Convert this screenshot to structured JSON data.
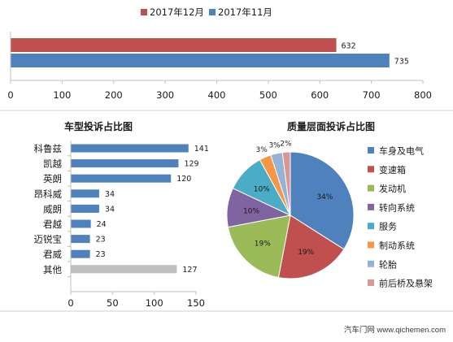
{
  "colors": {
    "dec": "#c0504d",
    "nov": "#4f81bd",
    "bar": "#4f81bd",
    "other_bar": "#bfbfbf",
    "axis": "#bfbfbf",
    "text": "#1a1a1a",
    "pie": [
      "#4f81bd",
      "#c0504d",
      "#9bbb59",
      "#8064a2",
      "#4bacc6",
      "#f79646",
      "#95b3d7",
      "#d99694"
    ]
  },
  "watermark": "汽车门网 www.qichemen.com",
  "chart_data": [
    {
      "type": "bar",
      "orientation": "horizontal",
      "categories": [
        ""
      ],
      "series": [
        {
          "name": "2017年12月",
          "values": [
            632
          ],
          "color": "#c0504d"
        },
        {
          "name": "2017年11月",
          "values": [
            735
          ],
          "color": "#4f81bd"
        }
      ],
      "data_labels": [
        "632",
        "735"
      ],
      "xlim": [
        0,
        800
      ],
      "xticks": [
        0,
        100,
        200,
        300,
        400,
        500,
        600,
        700,
        800
      ],
      "legend_position": "top",
      "title": "",
      "xlabel": "",
      "ylabel": "",
      "grid": false
    },
    {
      "type": "bar",
      "orientation": "horizontal",
      "title": "车型投诉占比图",
      "categories": [
        "科鲁兹",
        "凯越",
        "英朗",
        "昂科威",
        "威朗",
        "君越",
        "迈锐宝",
        "君威",
        "其他"
      ],
      "values": [
        141,
        129,
        120,
        34,
        34,
        24,
        23,
        23,
        127
      ],
      "data_labels": [
        "141",
        "129",
        "120",
        "34",
        "34",
        "24",
        "23",
        "23",
        "127"
      ],
      "highlight": {
        "category": "其他",
        "color": "#bfbfbf"
      },
      "xlim": [
        0,
        150
      ],
      "xticks": [
        0,
        50,
        100,
        150
      ],
      "xlabel": "",
      "ylabel": "",
      "grid": false
    },
    {
      "type": "pie",
      "title": "质量层面投诉占比图",
      "labels": [
        "车身及电气",
        "变速箱",
        "发动机",
        "转向系统",
        "服务",
        "制动系统",
        "轮胎",
        "前后桥及悬架"
      ],
      "values": [
        34,
        19,
        19,
        10,
        10,
        3,
        3,
        2
      ],
      "data_labels": [
        "34%",
        "19%",
        "19%",
        "10%",
        "10%",
        "3%",
        "3%",
        "2%"
      ],
      "start": "12 o'clock",
      "direction": "clockwise",
      "legend_position": "right"
    }
  ]
}
